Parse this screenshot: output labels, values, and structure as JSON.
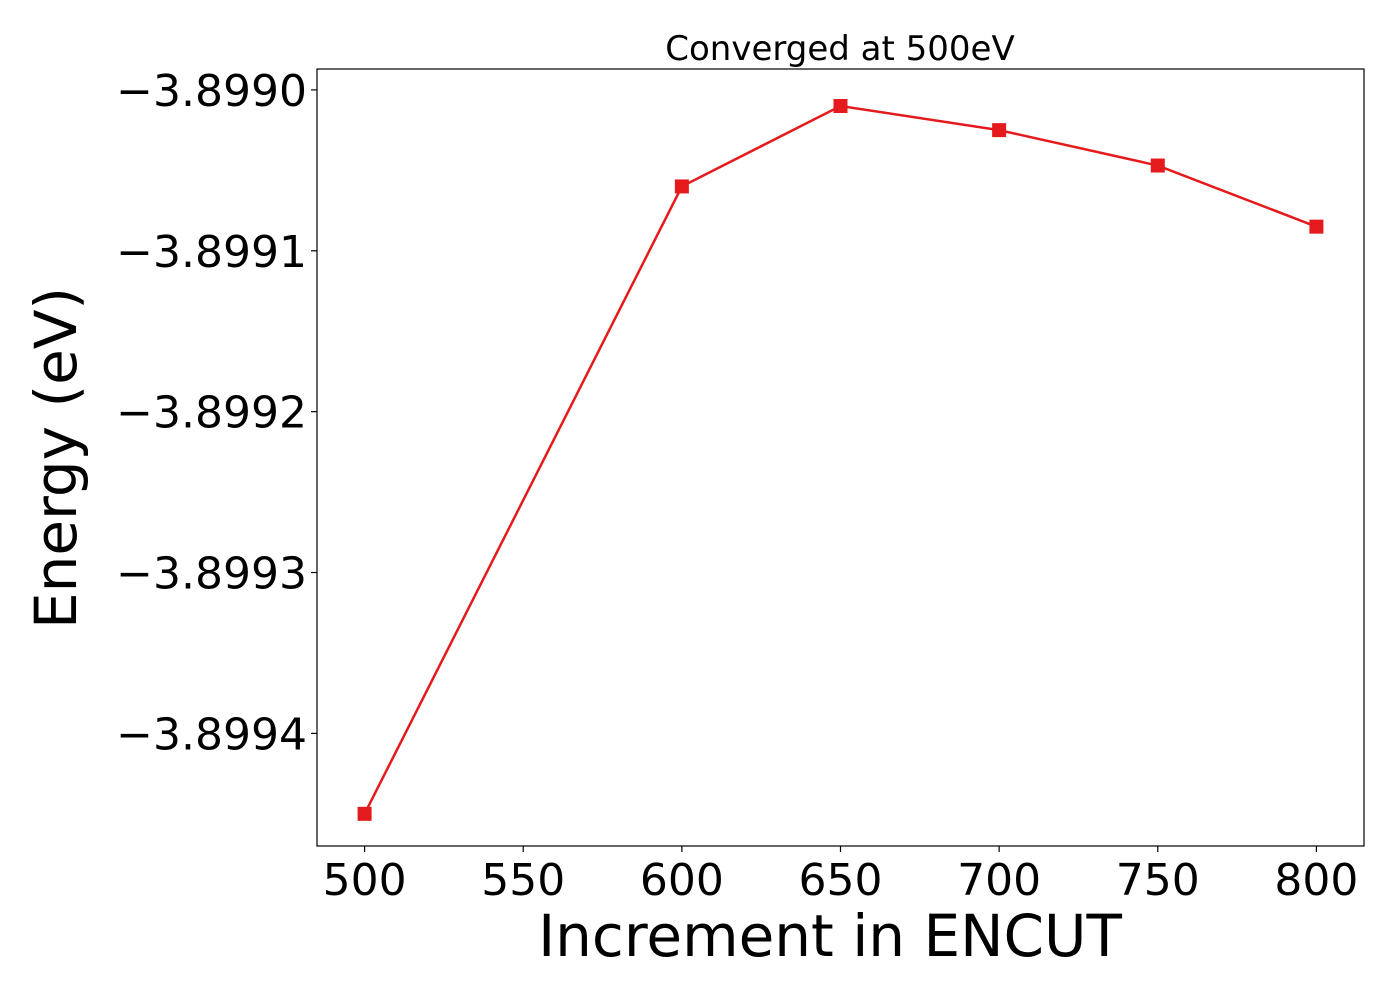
{
  "chart_data": {
    "type": "line",
    "title": "Converged at 500eV",
    "xlabel": "Increment in ENCUT",
    "ylabel": "Energy (eV)",
    "x": [
      500,
      600,
      650,
      700,
      750,
      800
    ],
    "series": [
      {
        "color": "#e41a1c",
        "marker": "square",
        "values": [
          -3.89945,
          -3.89906,
          -3.89901,
          -3.899025,
          -3.899047,
          -3.899085
        ]
      }
    ],
    "xlim": [
      485,
      815
    ],
    "ylim": [
      -3.89947,
      -3.898987
    ],
    "xticks": [
      500,
      550,
      600,
      650,
      700,
      750,
      800
    ],
    "xtick_labels": [
      "500",
      "550",
      "600",
      "650",
      "700",
      "750",
      "800"
    ],
    "yticks": [
      -3.8994,
      -3.8993,
      -3.8992,
      -3.8991,
      -3.899
    ],
    "ytick_labels": [
      "−3.8994",
      "−3.8993",
      "−3.8992",
      "−3.8991",
      "−3.8990"
    ],
    "grid": false,
    "legend": "none"
  }
}
